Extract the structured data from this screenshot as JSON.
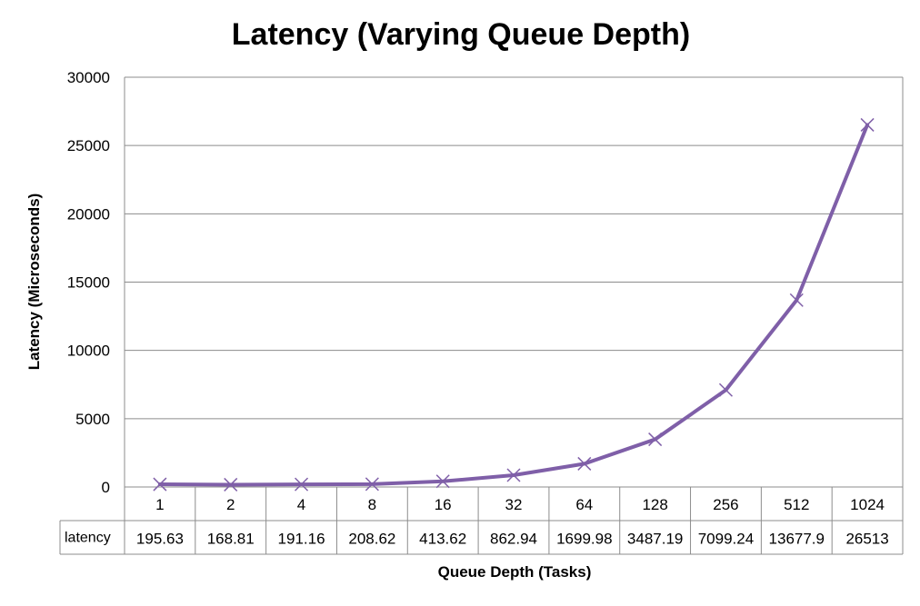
{
  "chart_data": {
    "type": "line",
    "title": "Latency (Varying Queue Depth)",
    "xlabel": "Queue Depth (Tasks)",
    "ylabel": "Latency (Microseconds)",
    "ylim": [
      0,
      30000
    ],
    "yticks": [
      0,
      5000,
      10000,
      15000,
      20000,
      25000,
      30000
    ],
    "grid": true,
    "legend": "data-table",
    "categories": [
      "1",
      "2",
      "4",
      "8",
      "16",
      "32",
      "64",
      "128",
      "256",
      "512",
      "1024"
    ],
    "series": [
      {
        "name": "latency",
        "color": "#7f5fa8",
        "marker": "x",
        "values": [
          195.63,
          168.81,
          191.16,
          208.62,
          413.62,
          862.94,
          1699.98,
          3487.19,
          7099.24,
          13677.9,
          26513
        ],
        "labels": [
          "195.63",
          "168.81",
          "191.16",
          "208.62",
          "413.62",
          "862.94",
          "1699.98",
          "3487.19",
          "7099.24",
          "13677.9",
          "26513"
        ]
      }
    ]
  }
}
